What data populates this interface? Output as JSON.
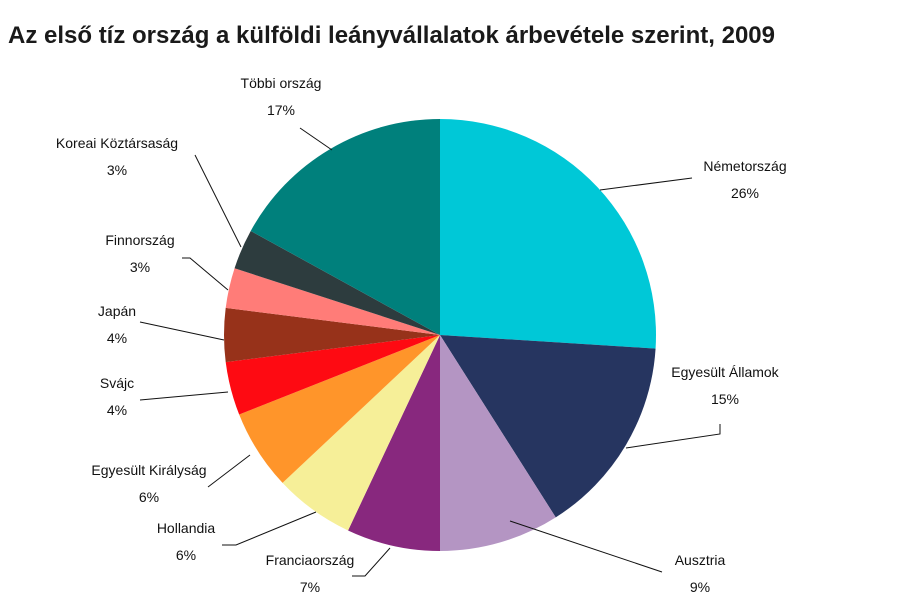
{
  "chart_data": {
    "type": "pie",
    "title": "Az első tíz ország a külföldi leányvállalatok árbevétele szerint, 2009",
    "start": "12 o'clock, clockwise",
    "slices": [
      {
        "label": "Németország",
        "value": 26,
        "value_label": "26%",
        "color": "#00C8D7"
      },
      {
        "label": "Egyesült Államok",
        "value": 15,
        "value_label": "15%",
        "color": "#263560"
      },
      {
        "label": "Ausztria",
        "value": 9,
        "value_label": "9%",
        "color": "#B495C3"
      },
      {
        "label": "Franciaország",
        "value": 7,
        "value_label": "7%",
        "color": "#88287E"
      },
      {
        "label": "Hollandia",
        "value": 6,
        "value_label": "6%",
        "color": "#F6EF98"
      },
      {
        "label": "Egyesült Királyság",
        "value": 6,
        "value_label": "6%",
        "color": "#FF952A"
      },
      {
        "label": "Svájc",
        "value": 4,
        "value_label": "4%",
        "color": "#FE0A12"
      },
      {
        "label": "Japán",
        "value": 4,
        "value_label": "4%",
        "color": "#97321A"
      },
      {
        "label": "Finnország",
        "value": 3,
        "value_label": "3%",
        "color": "#FF7C78"
      },
      {
        "label": "Koreai Köztársaság",
        "value": 3,
        "value_label": "3%",
        "color": "#2D3C3E"
      },
      {
        "label": "Többi ország",
        "value": 17,
        "value_label": "17%",
        "color": "#00807C"
      }
    ]
  }
}
